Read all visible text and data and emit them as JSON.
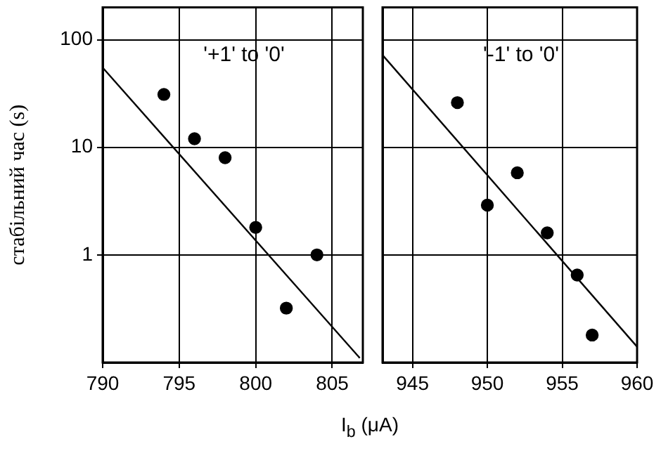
{
  "chart_data": [
    {
      "type": "scatter",
      "ylabel": "стабільний час (s)",
      "xlabel": "I$_{b}$ (μA)",
      "annotations": [
        "'+1' to '0'"
      ],
      "log": "y",
      "grid": true,
      "xlim": [
        790,
        807
      ],
      "xticks": [
        790,
        795,
        800,
        805
      ],
      "ylim": [
        0.1,
        200
      ],
      "yticks": [
        1,
        10,
        100
      ],
      "series": [
        {
          "type": "scatter",
          "marker": "circle",
          "color": "#000000",
          "x": [
            794,
            796,
            798,
            800,
            802,
            804
          ],
          "values": [
            31,
            12,
            8,
            1.8,
            0.32,
            1.0
          ]
        },
        {
          "type": "line",
          "marker": "none",
          "color": "#000000",
          "x": [
            790,
            806.8
          ],
          "values": [
            55,
            0.11
          ]
        }
      ]
    },
    {
      "type": "scatter",
      "annotations": [
        "'-1' to '0'"
      ],
      "log": "y",
      "grid": true,
      "tick_labels": "x",
      "xlim": [
        943,
        960
      ],
      "xticks": [
        945,
        950,
        955,
        960
      ],
      "ylim": [
        0.1,
        200
      ],
      "yticks": [
        1,
        10,
        100
      ],
      "series": [
        {
          "type": "scatter",
          "marker": "circle",
          "color": "#000000",
          "x": [
            948,
            950,
            952,
            954,
            956,
            957
          ],
          "values": [
            26,
            2.9,
            5.8,
            1.6,
            0.65,
            0.18
          ]
        },
        {
          "type": "line",
          "marker": "none",
          "color": "#000000",
          "x": [
            943,
            960
          ],
          "values": [
            72,
            0.14
          ]
        }
      ]
    }
  ]
}
